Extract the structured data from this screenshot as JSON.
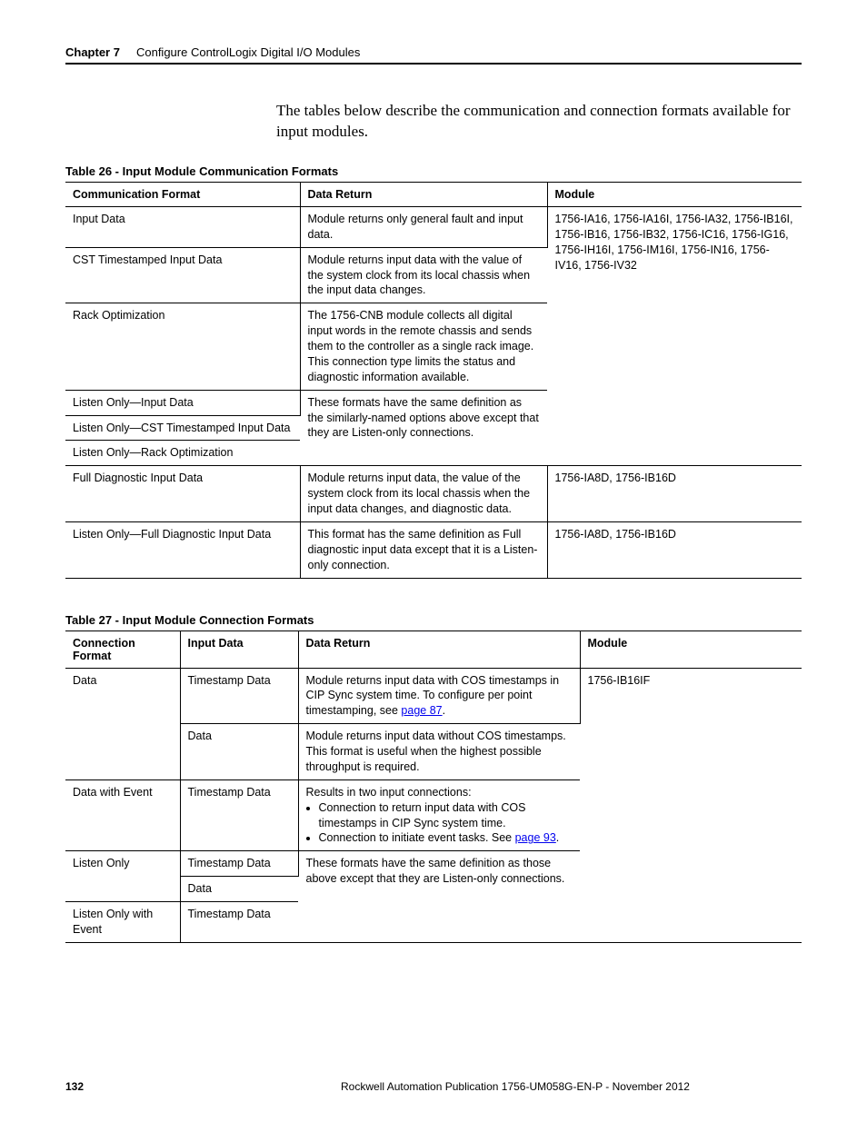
{
  "header": {
    "chapter_label": "Chapter 7",
    "chapter_title": "Configure ControlLogix Digital I/O Modules"
  },
  "intro": "The tables below describe the communication and connection formats available for input modules.",
  "table26": {
    "title": "Table 26 - Input Module Communication Formats",
    "headers": [
      "Communication Format",
      "Data Return",
      "Module"
    ],
    "module_group1": "1756-IA16, 1756-IA16I, 1756-IA32, 1756-IB16I, 1756-IB16, 1756-IB32, 1756-IC16, 1756-IG16, 1756-IH16I, 1756-IM16I, 1756-IN16, 1756-IV16, 1756-IV32",
    "rows": {
      "r1": {
        "c1": "Input Data",
        "c2": "Module returns only general fault and input data."
      },
      "r2": {
        "c1": "CST Timestamped Input Data",
        "c2": "Module returns input data with the value of the system clock from its local chassis when the input data changes."
      },
      "r3": {
        "c1": "Rack Optimization",
        "c2": "The 1756-CNB module collects all digital input words in the remote chassis and sends them to the controller as a single rack image. This connection type limits the status and diagnostic information available."
      },
      "r4": {
        "c1": "Listen Only—Input Data",
        "c2": "These formats have the same definition as the similarly-named options above except that they are Listen-only connections."
      },
      "r5": {
        "c1": "Listen Only—CST Timestamped Input Data"
      },
      "r6": {
        "c1": "Listen Only—Rack Optimization"
      },
      "r7": {
        "c1": "Full Diagnostic Input Data",
        "c2": "Module returns input data, the value of the system clock from its local chassis when the input data changes, and diagnostic data.",
        "c3": "1756-IA8D, 1756-IB16D"
      },
      "r8": {
        "c1": "Listen Only—Full Diagnostic Input Data",
        "c2": "This format has the same definition as Full diagnostic input data except that it is a Listen-only connection.",
        "c3": "1756-IA8D, 1756-IB16D"
      }
    }
  },
  "table27": {
    "title": "Table 27 - Input Module Connection Formats",
    "headers": [
      "Connection Format",
      "Input Data",
      "Data Return",
      "Module"
    ],
    "module": "1756-IB16IF",
    "rows": {
      "r1": {
        "c1": "Data",
        "c2": "Timestamp Data",
        "c3_pre": "Module returns input data with COS timestamps in CIP Sync system time. To configure per point timestamping, see ",
        "c3_link": "page 87",
        "c3_post": "."
      },
      "r2": {
        "c2": "Data",
        "c3": "Module returns input data without COS timestamps. This format is useful when the highest possible throughput is required."
      },
      "r3": {
        "c1": "Data with Event",
        "c2": "Timestamp Data",
        "c3_intro": "Results in two input connections:",
        "c3_b1": "Connection to return input data with COS timestamps in CIP Sync system time.",
        "c3_b2_pre": "Connection to initiate event tasks. See ",
        "c3_b2_link": "page 93",
        "c3_b2_post": "."
      },
      "r4": {
        "c1": "Listen Only",
        "c2": "Timestamp Data",
        "c3": "These formats have the same definition as those above except that they are Listen-only connections."
      },
      "r5": {
        "c2": "Data"
      },
      "r6": {
        "c1": "Listen Only with Event",
        "c2": "Timestamp Data"
      }
    }
  },
  "footer": {
    "page": "132",
    "pub": "Rockwell Automation Publication 1756-UM058G-EN-P - November 2012"
  }
}
